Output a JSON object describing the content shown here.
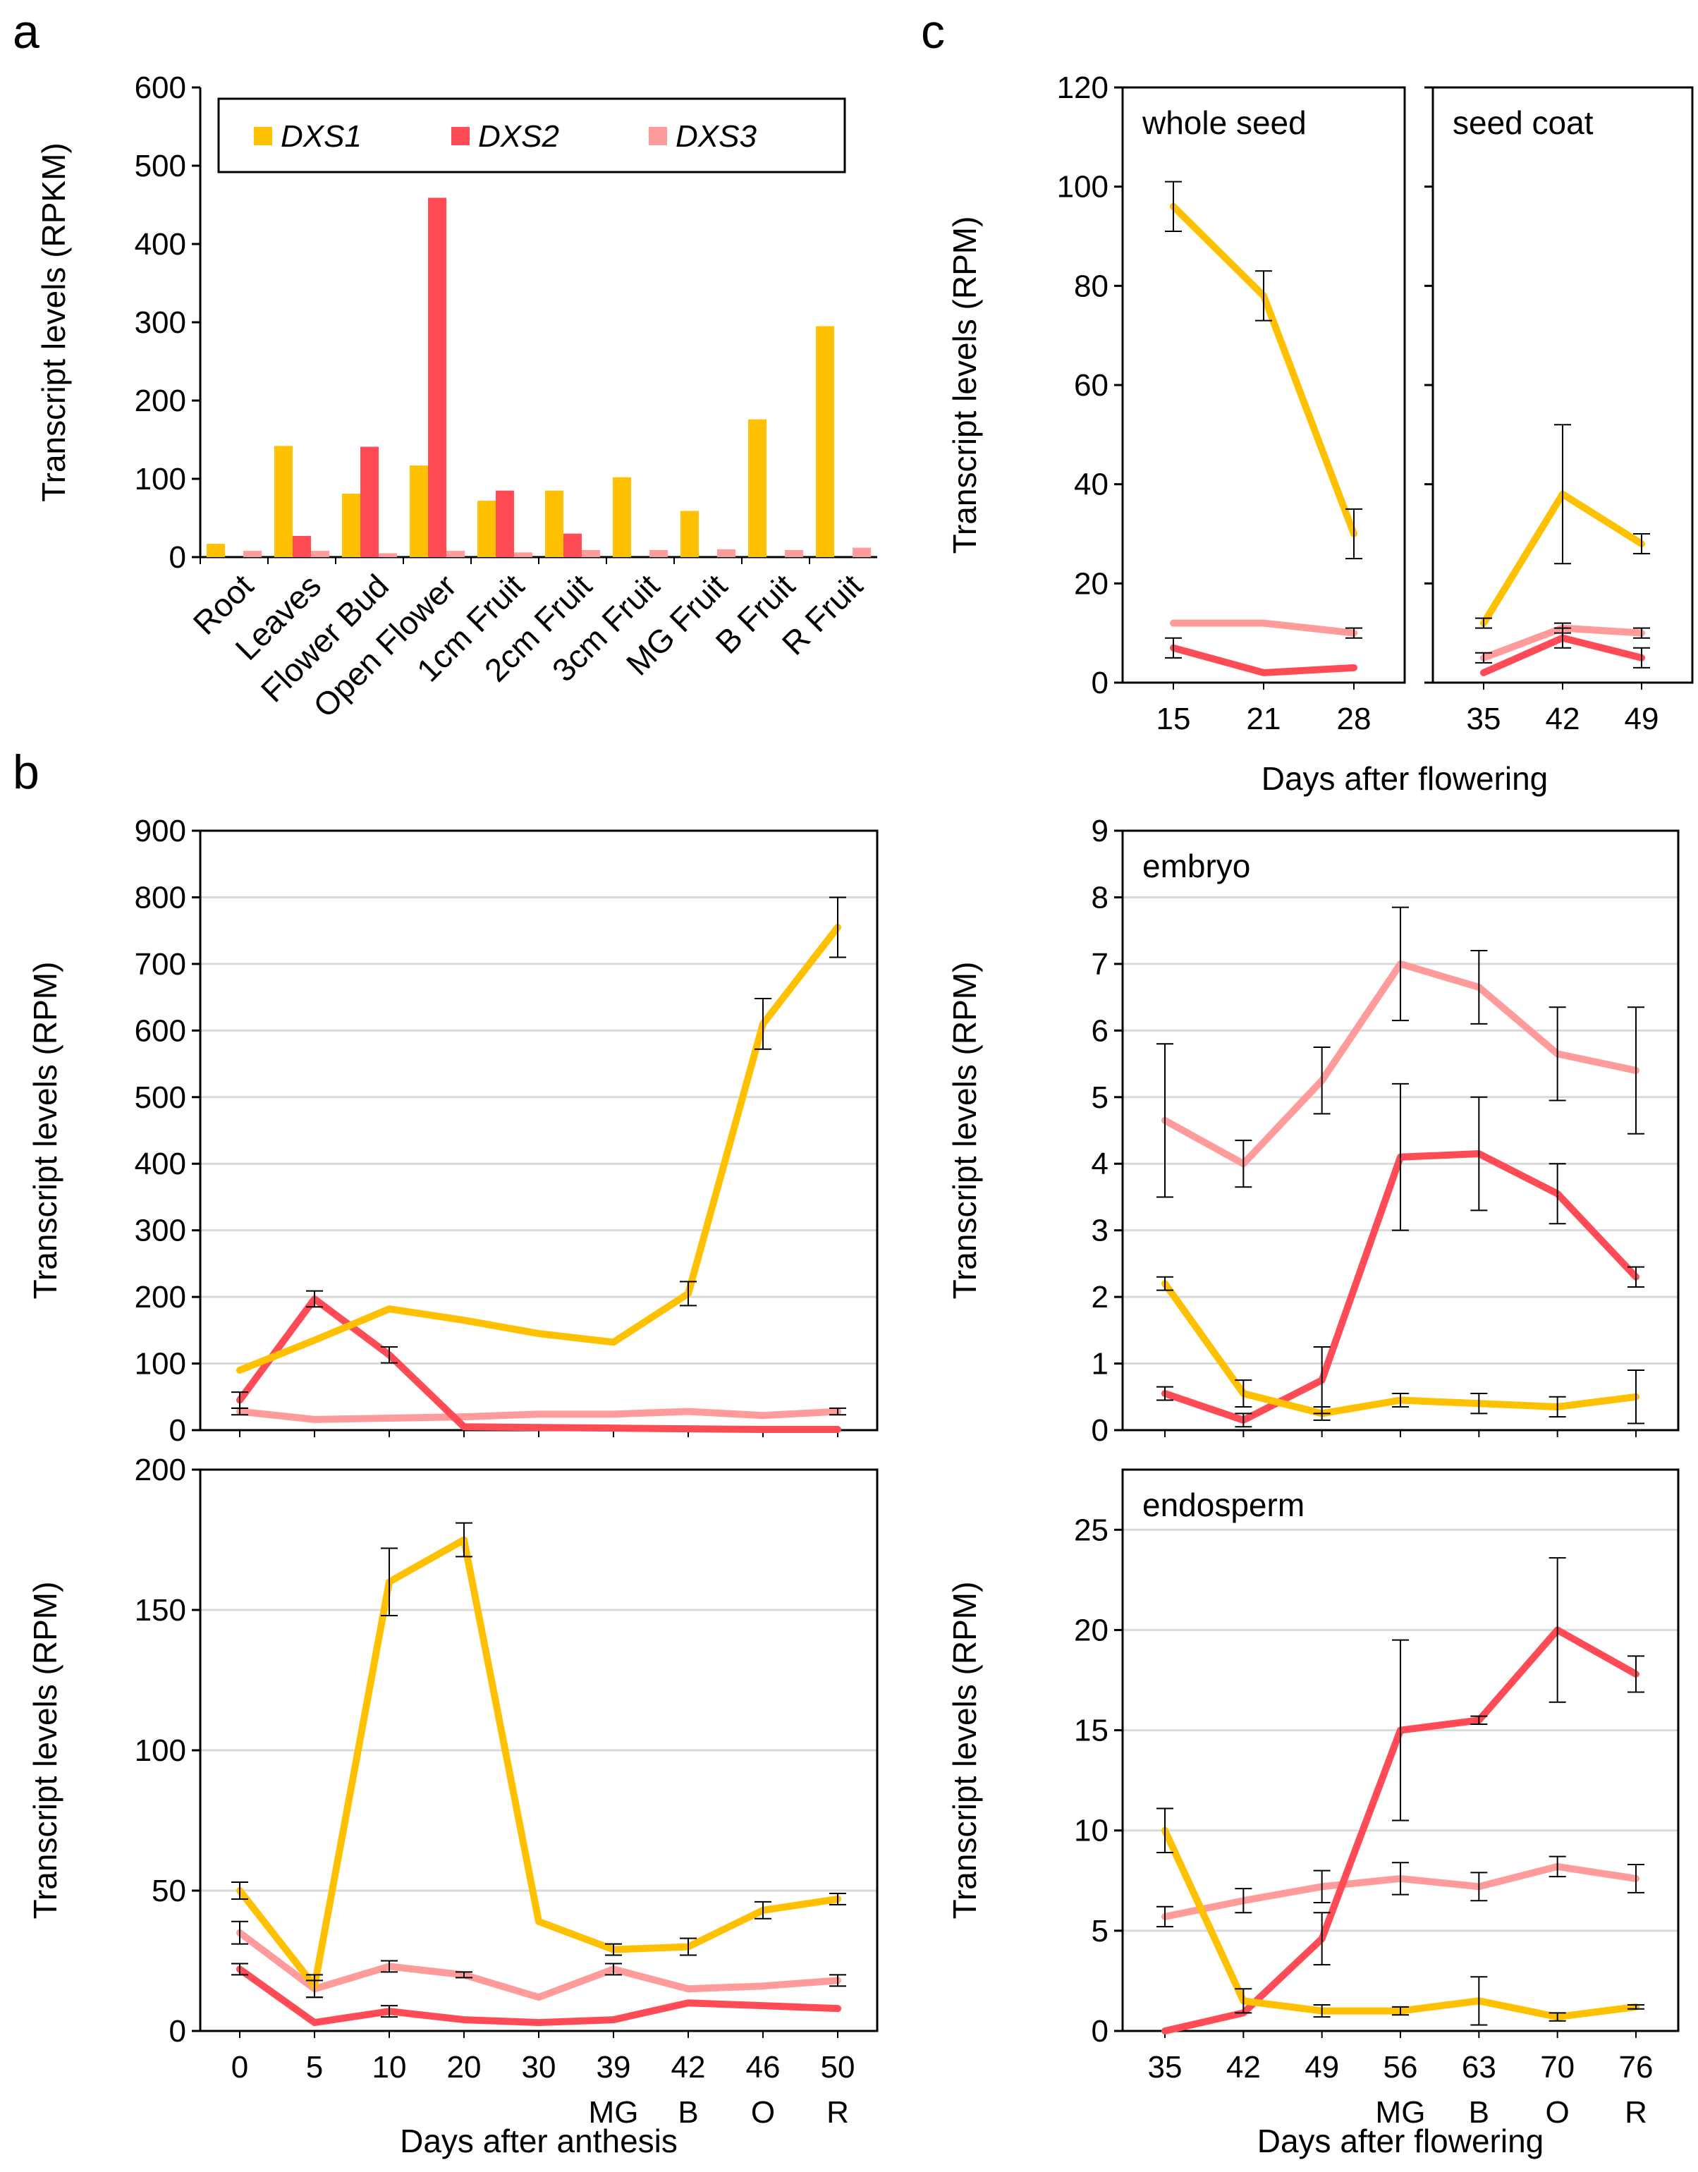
{
  "colors": {
    "DXS1": "#FFC000",
    "DXS2": "#FF4B55",
    "DXS3": "#FF9B9B",
    "grid": "#D9D9D9",
    "axis": "#000000"
  },
  "panel_letters": {
    "a": "a",
    "b": "b",
    "c": "c"
  },
  "chart_data": [
    {
      "id": "a",
      "type": "bar",
      "title": "",
      "ylabel": "Transcript levels (RPKM)",
      "xlabel": "",
      "ylim": [
        0,
        600
      ],
      "yticks": [
        0,
        100,
        200,
        300,
        400,
        500,
        600
      ],
      "grid": false,
      "legend": "top",
      "categories": [
        "Root",
        "Leaves",
        "Flower Bud",
        "Open Flower",
        "1cm Fruit",
        "2cm Fruit",
        "3cm Fruit",
        "MG Fruit",
        "B Fruit",
        "R Fruit"
      ],
      "series": [
        {
          "name": "DXS1",
          "values": [
            17,
            142,
            81,
            117,
            72,
            85,
            102,
            59,
            176,
            295
          ]
        },
        {
          "name": "DXS2",
          "values": [
            0,
            27,
            141,
            459,
            85,
            30,
            0,
            0,
            0,
            0
          ]
        },
        {
          "name": "DXS3",
          "values": [
            8,
            8,
            5,
            8,
            6,
            9,
            9,
            10,
            9,
            12
          ]
        }
      ]
    },
    {
      "id": "b_top",
      "type": "line",
      "ylabel": "Transcript levels (RPM)",
      "ylim": [
        0,
        900
      ],
      "yticks": [
        0,
        100,
        200,
        300,
        400,
        500,
        600,
        700,
        800,
        900
      ],
      "grid": true,
      "x": [
        "0",
        "5",
        "10",
        "20",
        "30",
        "39",
        "42",
        "46",
        "50"
      ],
      "series": [
        {
          "name": "DXS1",
          "values": [
            90,
            135,
            182,
            165,
            145,
            132,
            205,
            610,
            755
          ],
          "errors": [
            0,
            0,
            0,
            0,
            0,
            0,
            18,
            38,
            45
          ]
        },
        {
          "name": "DXS2",
          "values": [
            45,
            197,
            113,
            5,
            4,
            3,
            2,
            1,
            1
          ],
          "errors": [
            12,
            12,
            12,
            0,
            0,
            0,
            0,
            0,
            0
          ]
        },
        {
          "name": "DXS3",
          "values": [
            28,
            16,
            18,
            20,
            24,
            24,
            28,
            22,
            28
          ],
          "errors": [
            5,
            0,
            0,
            0,
            0,
            0,
            0,
            0,
            5
          ]
        }
      ]
    },
    {
      "id": "b_bottom",
      "type": "line",
      "ylabel": "Transcript levels (RPM)",
      "xlabel": "Days after anthesis",
      "ylim": [
        0,
        200
      ],
      "yticks": [
        0,
        50,
        100,
        150,
        200
      ],
      "grid": true,
      "x": [
        "0",
        "5",
        "10",
        "20",
        "30",
        "39",
        "42",
        "46",
        "50"
      ],
      "x_sublabels": [
        "",
        "",
        "",
        "",
        "",
        "MG",
        "B",
        "O",
        "R"
      ],
      "series": [
        {
          "name": "DXS1",
          "values": [
            50,
            16,
            160,
            175,
            39,
            29,
            30,
            43,
            47
          ],
          "errors": [
            3,
            4,
            12,
            6,
            0,
            2,
            3,
            3,
            2
          ]
        },
        {
          "name": "DXS2",
          "values": [
            22,
            3,
            7,
            4,
            3,
            4,
            10,
            9,
            8
          ],
          "errors": [
            2,
            0,
            2,
            0,
            0,
            0,
            0,
            0,
            0
          ]
        },
        {
          "name": "DXS3",
          "values": [
            35,
            15,
            23,
            20,
            12,
            22,
            15,
            16,
            18
          ],
          "errors": [
            4,
            3,
            2,
            1,
            0,
            2,
            0,
            0,
            2
          ]
        }
      ]
    },
    {
      "id": "c_whole_seed",
      "type": "line",
      "title": "whole seed",
      "ylabel": "Transcript levels (RPM)",
      "ylim": [
        0,
        120
      ],
      "yticks": [
        0,
        20,
        40,
        60,
        80,
        100,
        120
      ],
      "grid": false,
      "x": [
        "15",
        "21",
        "28"
      ],
      "series": [
        {
          "name": "DXS1",
          "values": [
            96,
            78,
            30
          ],
          "errors": [
            5,
            5,
            5
          ]
        },
        {
          "name": "DXS2",
          "values": [
            7,
            2,
            3
          ],
          "errors": [
            2,
            0,
            0
          ]
        },
        {
          "name": "DXS3",
          "values": [
            12,
            12,
            10
          ],
          "errors": [
            0,
            0,
            1
          ]
        }
      ]
    },
    {
      "id": "c_seed_coat",
      "type": "line",
      "title": "seed coat",
      "ylim": [
        0,
        120
      ],
      "yticks": [
        0,
        20,
        40,
        60,
        80,
        100,
        120
      ],
      "grid": false,
      "x": [
        "35",
        "42",
        "49"
      ],
      "series": [
        {
          "name": "DXS1",
          "values": [
            12,
            38,
            28
          ],
          "errors": [
            1,
            14,
            2
          ]
        },
        {
          "name": "DXS2",
          "values": [
            2,
            9,
            5
          ],
          "errors": [
            0,
            2,
            2
          ]
        },
        {
          "name": "DXS3",
          "values": [
            5,
            11,
            10
          ],
          "errors": [
            1,
            1,
            1
          ]
        }
      ]
    },
    {
      "id": "c_xaxis",
      "xlabel": "Days after flowering"
    },
    {
      "id": "c_embryo",
      "type": "line",
      "title": "embryo",
      "ylabel": "Transcript levels (RPM)",
      "ylim": [
        0,
        9
      ],
      "yticks": [
        0,
        1,
        2,
        3,
        4,
        5,
        6,
        7,
        8,
        9
      ],
      "grid": true,
      "x": [
        "35",
        "42",
        "49",
        "56",
        "63",
        "70",
        "76"
      ],
      "series": [
        {
          "name": "DXS1",
          "values": [
            2.2,
            0.55,
            0.25,
            0.45,
            0.4,
            0.35,
            0.5
          ],
          "errors": [
            0.1,
            0.2,
            0.1,
            0.1,
            0.15,
            0.15,
            0.4
          ]
        },
        {
          "name": "DXS2",
          "values": [
            0.55,
            0.15,
            0.75,
            4.1,
            4.15,
            3.55,
            2.3
          ],
          "errors": [
            0.1,
            0.1,
            0.5,
            1.1,
            0.85,
            0.45,
            0.15
          ]
        },
        {
          "name": "DXS3",
          "values": [
            4.65,
            4.0,
            5.25,
            7.0,
            6.65,
            5.65,
            5.4
          ],
          "errors": [
            1.15,
            0.35,
            0.5,
            0.85,
            0.55,
            0.7,
            0.95
          ]
        }
      ]
    },
    {
      "id": "c_endosperm",
      "type": "line",
      "title": "endosperm",
      "ylabel": "Transcript levels (RPM)",
      "xlabel": "Days after flowering",
      "ylim": [
        0,
        28
      ],
      "yticks": [
        0,
        5,
        10,
        15,
        20,
        25
      ],
      "grid": true,
      "x": [
        "35",
        "42",
        "49",
        "56",
        "63",
        "70",
        "76"
      ],
      "x_sublabels": [
        "",
        "",
        "",
        "MG",
        "B",
        "O",
        "R"
      ],
      "series": [
        {
          "name": "DXS1",
          "values": [
            10,
            1.5,
            1.0,
            1.0,
            1.5,
            0.7,
            1.2
          ],
          "errors": [
            1.1,
            0.6,
            0.3,
            0.2,
            1.2,
            0.2,
            0.1
          ]
        },
        {
          "name": "DXS2",
          "values": [
            0,
            0.9,
            4.6,
            15.0,
            15.5,
            20.0,
            17.8
          ],
          "errors": [
            0,
            0,
            1.3,
            4.5,
            0.2,
            3.6,
            0.9
          ]
        },
        {
          "name": "DXS3",
          "values": [
            5.7,
            6.5,
            7.2,
            7.6,
            7.2,
            8.2,
            7.6
          ],
          "errors": [
            0.5,
            0.6,
            0.8,
            0.8,
            0.7,
            0.5,
            0.7
          ]
        }
      ]
    }
  ]
}
